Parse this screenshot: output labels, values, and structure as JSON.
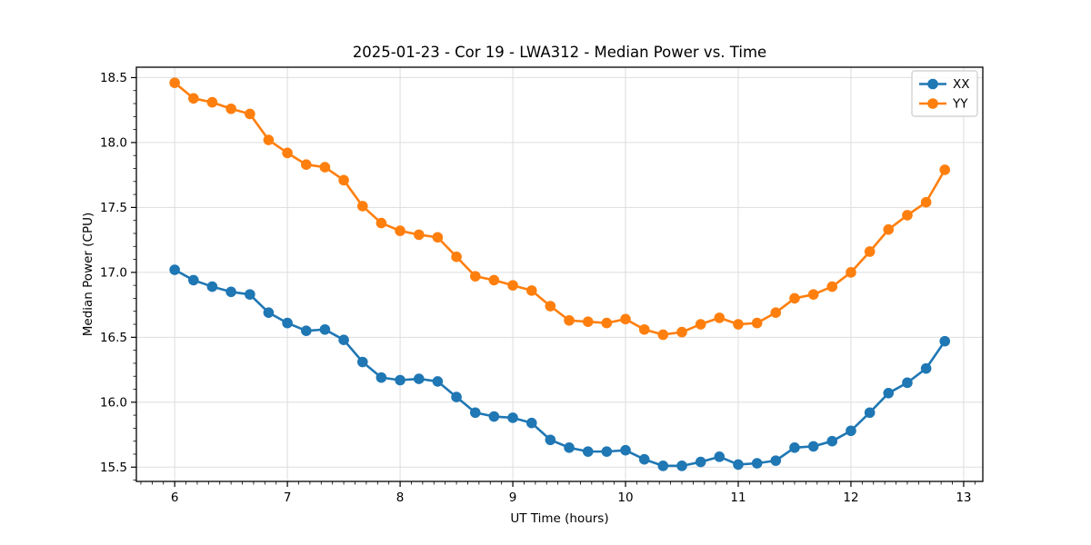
{
  "figure": {
    "title": "2025-01-23 - Cor 19 - LWA312 - Median Power vs. Time",
    "xlabel": "UT Time (hours)",
    "ylabel": "Median Power (CPU)"
  },
  "chart_data": {
    "type": "line",
    "title": "2025-01-23 - Cor 19 - LWA312 - Median Power vs. Time",
    "xlabel": "UT Time (hours)",
    "ylabel": "Median Power (CPU)",
    "grid": true,
    "legend_position": "upper right",
    "background_color": "#ffffff",
    "grid_color": "#dddddd",
    "xlim": [
      5.66,
      13.17
    ],
    "ylim": [
      15.39,
      18.58
    ],
    "x_ticks": {
      "values": [
        6,
        7,
        8,
        9,
        10,
        11,
        12,
        13
      ],
      "labels": [
        "6",
        "7",
        "8",
        "9",
        "10",
        "11",
        "12",
        "13"
      ]
    },
    "y_ticks": {
      "values": [
        15.5,
        16.0,
        16.5,
        17.0,
        17.5,
        18.0,
        18.5
      ],
      "labels": [
        "15.5",
        "16.0",
        "16.5",
        "17.0",
        "17.5",
        "18.0",
        "18.5"
      ]
    },
    "x_minor_step": 0.1,
    "y_minor_step": 0.1,
    "x": [
      6.0,
      6.167,
      6.333,
      6.5,
      6.667,
      6.833,
      7.0,
      7.167,
      7.333,
      7.5,
      7.667,
      7.833,
      8.0,
      8.167,
      8.333,
      8.5,
      8.667,
      8.833,
      9.0,
      9.167,
      9.333,
      9.5,
      9.667,
      9.833,
      10.0,
      10.167,
      10.333,
      10.5,
      10.667,
      10.833,
      11.0,
      11.167,
      11.333,
      11.5,
      11.667,
      11.833,
      12.0,
      12.167,
      12.333,
      12.5,
      12.667,
      12.833
    ],
    "series": [
      {
        "name": "XX",
        "color": "#1f77b4",
        "values": [
          17.02,
          16.94,
          16.89,
          16.85,
          16.83,
          16.69,
          16.61,
          16.55,
          16.56,
          16.48,
          16.31,
          16.19,
          16.17,
          16.18,
          16.16,
          16.04,
          15.92,
          15.89,
          15.88,
          15.84,
          15.71,
          15.65,
          15.62,
          15.62,
          15.63,
          15.56,
          15.51,
          15.51,
          15.54,
          15.58,
          15.52,
          15.53,
          15.55,
          15.65,
          15.66,
          15.7,
          15.78,
          15.92,
          16.07,
          16.15,
          16.26,
          16.47
        ]
      },
      {
        "name": "YY",
        "color": "#ff7f0e",
        "values": [
          18.46,
          18.34,
          18.31,
          18.26,
          18.22,
          18.02,
          17.92,
          17.83,
          17.81,
          17.71,
          17.51,
          17.38,
          17.32,
          17.29,
          17.27,
          17.12,
          16.97,
          16.94,
          16.9,
          16.86,
          16.74,
          16.63,
          16.62,
          16.61,
          16.64,
          16.56,
          16.52,
          16.54,
          16.6,
          16.65,
          16.6,
          16.61,
          16.69,
          16.8,
          16.83,
          16.89,
          17.0,
          17.16,
          17.33,
          17.44,
          17.54,
          17.79
        ]
      }
    ]
  }
}
